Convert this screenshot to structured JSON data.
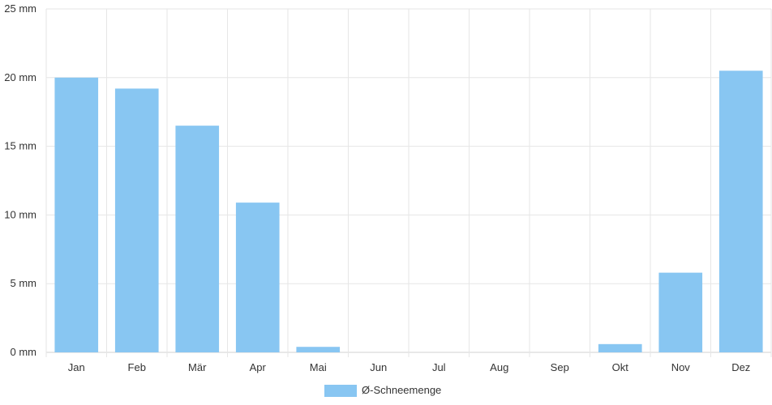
{
  "chart_data": {
    "type": "bar",
    "categories": [
      "Jan",
      "Feb",
      "Mär",
      "Apr",
      "Mai",
      "Jun",
      "Jul",
      "Aug",
      "Sep",
      "Okt",
      "Nov",
      "Dez"
    ],
    "series": [
      {
        "name": "Ø-Schneemenge",
        "values": [
          20.0,
          19.2,
          16.5,
          10.9,
          0.4,
          0,
          0,
          0,
          0,
          0.6,
          5.8,
          20.5
        ],
        "color": "#88c6f2"
      }
    ],
    "y_ticks": [
      "0 mm",
      "5 mm",
      "10 mm",
      "15 mm",
      "20 mm",
      "25 mm"
    ],
    "ylim": [
      0,
      25
    ],
    "y_unit": "mm",
    "grid": true,
    "legend_position": "bottom-center",
    "title": "",
    "xlabel": "",
    "ylabel": ""
  }
}
